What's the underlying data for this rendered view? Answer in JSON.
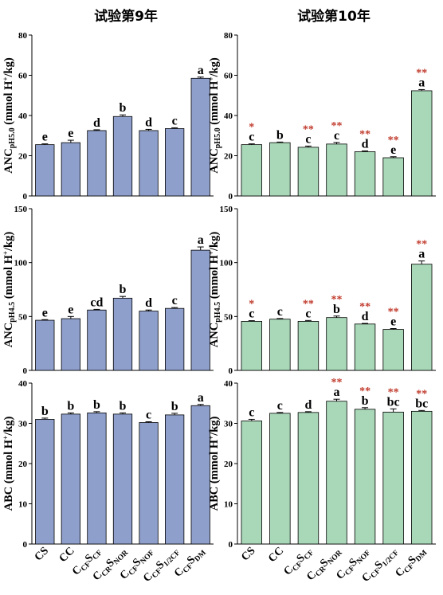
{
  "colors": {
    "year9_bar": "#8f9fcb",
    "year10_bar": "#a8d8b8",
    "star": "#c0392b"
  },
  "column_titles": [
    "试验第9年",
    "试验第10年"
  ],
  "categories": [
    {
      "base": "CS",
      "sub": ""
    },
    {
      "base": "CC",
      "sub": ""
    },
    {
      "base": "C",
      "sub": "CF",
      "base2": "S",
      "sub2": "CF"
    },
    {
      "base": "C",
      "sub": "CR",
      "base2": "S",
      "sub2": "NOR"
    },
    {
      "base": "C",
      "sub": "CF",
      "base2": "S",
      "sub2": "NOF"
    },
    {
      "base": "C",
      "sub": "CF",
      "base2": "S",
      "sub2": "1/2CF"
    },
    {
      "base": "C",
      "sub": "CF",
      "base2": "S",
      "sub2": "DM"
    }
  ],
  "ylabels": {
    "anc50": {
      "main": "ANC",
      "sub": "pH5.0",
      "unit": " (mmol H",
      "sup": "+",
      "unit2": "/kg)"
    },
    "anc45": {
      "main": "ANC",
      "sub": "pH4.5",
      "unit": " (mmol H",
      "sup": "+",
      "unit2": "/kg)"
    },
    "abc": {
      "main": "ABC (mmol H",
      "sup": "+",
      "unit2": "/kg)"
    }
  },
  "chart_data": [
    {
      "type": "bar",
      "panel": "year9-anc50",
      "ylim": [
        0,
        80
      ],
      "yticks": [
        0,
        20,
        40,
        60,
        80
      ],
      "values": [
        25.5,
        26.5,
        32.5,
        39.5,
        32.5,
        33.5,
        58.5
      ],
      "errors": [
        0.4,
        1.2,
        0.4,
        0.8,
        0.6,
        0.4,
        0.6
      ],
      "letters": [
        "e",
        "e",
        "d",
        "b",
        "d",
        "c",
        "a"
      ],
      "stars": [
        "",
        "",
        "",
        "",
        "",
        "",
        ""
      ]
    },
    {
      "type": "bar",
      "panel": "year10-anc50",
      "ylim": [
        0,
        80
      ],
      "yticks": [
        0,
        20,
        40,
        60,
        80
      ],
      "values": [
        25.5,
        26.5,
        24.2,
        25.8,
        22.0,
        19.0,
        52.3
      ],
      "errors": [
        0.4,
        0.3,
        0.6,
        0.8,
        0.4,
        0.5,
        0.6
      ],
      "letters": [
        "c",
        "b",
        "c",
        "c",
        "d",
        "e",
        "a"
      ],
      "stars": [
        "*",
        "",
        "**",
        "**",
        "**",
        "**",
        "**"
      ]
    },
    {
      "type": "bar",
      "panel": "year9-anc45",
      "ylim": [
        0,
        150
      ],
      "yticks": [
        0,
        50,
        100,
        150
      ],
      "values": [
        46.5,
        48.0,
        56.0,
        67.0,
        55.0,
        57.5,
        111.5
      ],
      "errors": [
        0.6,
        2.0,
        0.6,
        1.6,
        1.0,
        0.8,
        3.0
      ],
      "letters": [
        "e",
        "e",
        "cd",
        "b",
        "d",
        "c",
        "a"
      ],
      "stars": [
        "",
        "",
        "",
        "",
        "",
        "",
        ""
      ]
    },
    {
      "type": "bar",
      "panel": "year10-anc45",
      "ylim": [
        0,
        150
      ],
      "yticks": [
        0,
        50,
        100,
        150
      ],
      "values": [
        45.5,
        47.5,
        45.5,
        49.0,
        43.0,
        38.0,
        98.5
      ],
      "errors": [
        0.6,
        0.6,
        0.8,
        1.4,
        0.6,
        0.8,
        3.0
      ],
      "letters": [
        "c",
        "c",
        "c",
        "b",
        "d",
        "e",
        "a"
      ],
      "stars": [
        "*",
        "",
        "**",
        "**",
        "**",
        "**",
        "**"
      ]
    },
    {
      "type": "bar",
      "panel": "year9-abc",
      "ylim": [
        0,
        40
      ],
      "yticks": [
        0,
        10,
        20,
        30,
        40
      ],
      "values": [
        31.0,
        32.3,
        32.6,
        32.3,
        30.2,
        32.1,
        34.4
      ],
      "errors": [
        0.3,
        0.3,
        0.3,
        0.3,
        0.2,
        0.4,
        0.3
      ],
      "letters": [
        "b",
        "b",
        "b",
        "b",
        "c",
        "b",
        "a"
      ],
      "stars": [
        "",
        "",
        "",
        "",
        "",
        "",
        ""
      ]
    },
    {
      "type": "bar",
      "panel": "year10-abc",
      "ylim": [
        0,
        40
      ],
      "yticks": [
        0,
        10,
        20,
        30,
        40
      ],
      "values": [
        30.6,
        32.5,
        32.7,
        35.5,
        33.5,
        32.8,
        33.0
      ],
      "errors": [
        0.4,
        0.2,
        0.2,
        0.5,
        0.4,
        0.8,
        0.2
      ],
      "letters": [
        "c",
        "c",
        "d",
        "a",
        "b",
        "bc",
        "bc"
      ],
      "stars": [
        "",
        "",
        "",
        "**",
        "**",
        "**",
        "**"
      ]
    }
  ]
}
